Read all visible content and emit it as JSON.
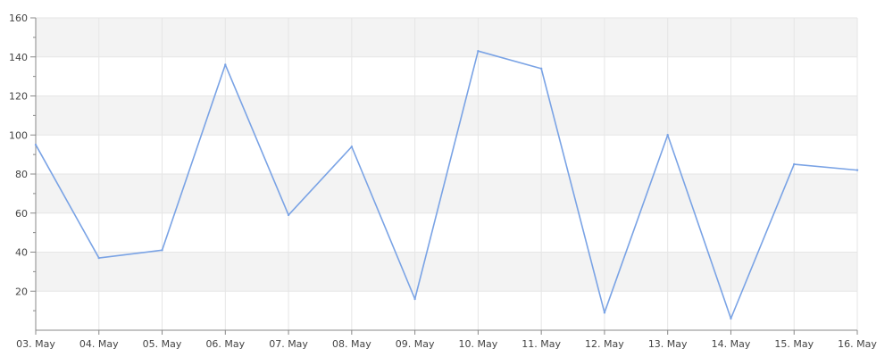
{
  "chart_data": {
    "type": "line",
    "categories": [
      "03. May",
      "04. May",
      "05. May",
      "06. May",
      "07. May",
      "08. May",
      "09. May",
      "10. May",
      "11. May",
      "12. May",
      "13. May",
      "14. May",
      "15. May",
      "16. May"
    ],
    "series": [
      {
        "values": [
          95,
          37,
          41,
          136,
          59,
          94,
          16,
          143,
          134,
          9,
          100,
          6,
          85,
          82
        ],
        "color": "#7aa3e5"
      }
    ],
    "ylim": [
      0,
      160
    ],
    "yticks": [
      20,
      40,
      60,
      80,
      100,
      120,
      140,
      160
    ],
    "grid": true,
    "band_color": "#f3f3f3",
    "gridline_color": "#e6e6e6",
    "axis_color": "#888888"
  }
}
